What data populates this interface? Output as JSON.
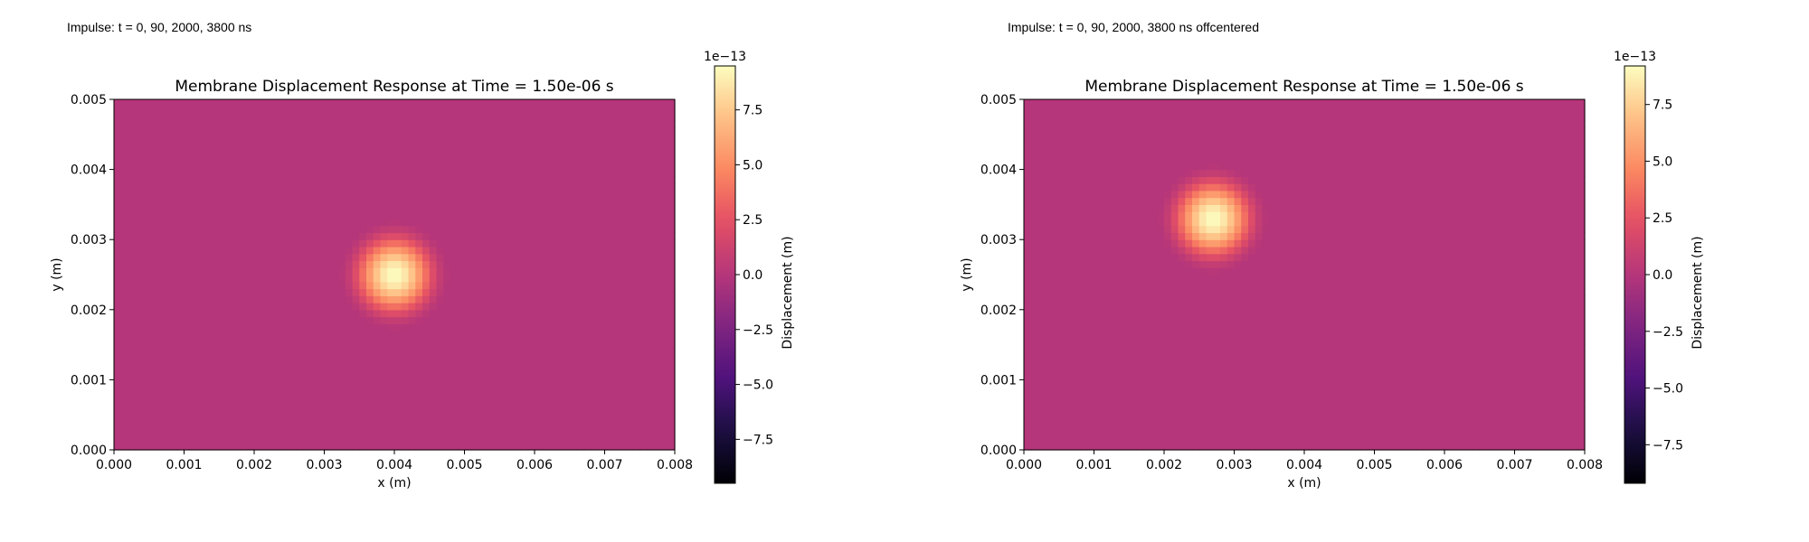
{
  "panels": [
    {
      "caption": "Impulse: t = 0, 90, 2000, 3800 ns",
      "chart_data": {
        "type": "heatmap",
        "title": "Membrane Displacement Response at Time = 1.50e-06 s",
        "xlabel": "x (m)",
        "ylabel": "y (m)",
        "xlim": [
          0.0,
          0.008
        ],
        "ylim": [
          0.0,
          0.005
        ],
        "xticks": [
          "0.000",
          "0.001",
          "0.002",
          "0.003",
          "0.004",
          "0.005",
          "0.006",
          "0.007",
          "0.008"
        ],
        "yticks": [
          "0.000",
          "0.001",
          "0.002",
          "0.003",
          "0.004",
          "0.005"
        ],
        "colormap": "magma",
        "background_value": 0.0,
        "peak": {
          "x": 0.004,
          "y": 0.0025,
          "value": 9.5e-13,
          "radius": 0.0008
        },
        "colorbar": {
          "label": "Displacement (m)",
          "offset_text": "1e−13",
          "range": [
            -9.5,
            9.5
          ],
          "ticks": [
            "−7.5",
            "−5.0",
            "−2.5",
            "0.0",
            "2.5",
            "5.0",
            "7.5"
          ]
        }
      }
    },
    {
      "caption": "Impulse: t = 0, 90, 2000, 3800 ns offcentered",
      "chart_data": {
        "type": "heatmap",
        "title": "Membrane Displacement Response at Time = 1.50e-06 s",
        "xlabel": "x (m)",
        "ylabel": "y (m)",
        "xlim": [
          0.0,
          0.008
        ],
        "ylim": [
          0.0,
          0.005
        ],
        "xticks": [
          "0.000",
          "0.001",
          "0.002",
          "0.003",
          "0.004",
          "0.005",
          "0.006",
          "0.007",
          "0.008"
        ],
        "yticks": [
          "0.000",
          "0.001",
          "0.002",
          "0.003",
          "0.004",
          "0.005"
        ],
        "colormap": "magma",
        "background_value": 0.0,
        "peak": {
          "x": 0.0027,
          "y": 0.0033,
          "value": 9.2e-13,
          "radius": 0.0008
        },
        "colorbar": {
          "label": "Displacement (m)",
          "offset_text": "1e−13",
          "range": [
            -9.2,
            9.2
          ],
          "ticks": [
            "−7.5",
            "−5.0",
            "−2.5",
            "0.0",
            "2.5",
            "5.0",
            "7.5"
          ]
        }
      }
    }
  ]
}
